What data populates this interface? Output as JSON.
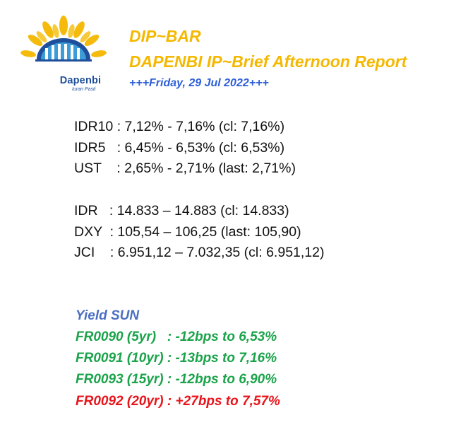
{
  "logo": {
    "brand": "Dapenbi",
    "tagline": "Iuran Pasti",
    "colors": {
      "sun": "#f5b800",
      "building": "#1f4e9a",
      "accent": "#3c9cd8"
    }
  },
  "header": {
    "title": "DIP~BAR",
    "subtitle": "DAPENBI IP~Brief Afternoon Report",
    "date": "+++Friday, 29 Jul 2022+++"
  },
  "rates": [
    {
      "name": "IDR10",
      "sep": " : ",
      "value": "7,12% - 7,16% (cl: 7,16%)"
    },
    {
      "name": "IDR5",
      "sep": "   : ",
      "value": "6,45% - 6,53% (cl: 6,53%)"
    },
    {
      "name": "UST",
      "sep": "    : ",
      "value": "2,65% - 2,71% (last: 2,71%)"
    }
  ],
  "markets": [
    {
      "name": "IDR",
      "sep": "   : ",
      "value": "14.833 – 14.883 (cl: 14.833)"
    },
    {
      "name": "DXY",
      "sep": "  : ",
      "value": "105,54 – 106,25 (last: 105,90)"
    },
    {
      "name": "JCI",
      "sep": "    : ",
      "value": "6.951,12 – 7.032,35 (cl: 6.951,12)"
    }
  ],
  "yield": {
    "heading": "Yield SUN",
    "items": [
      {
        "text": "FR0090 (5yr)   : -12bps to 6,53%",
        "color": "#1aa34a"
      },
      {
        "text": "FR0091 (10yr) : -13bps to 7,16%",
        "color": "#1aa34a"
      },
      {
        "text": "FR0093 (15yr) : -12bps to 6,90%",
        "color": "#1aa34a"
      },
      {
        "text": "FR0092 (20yr) : +27bps to 7,57%",
        "color": "#e8141b"
      }
    ]
  }
}
